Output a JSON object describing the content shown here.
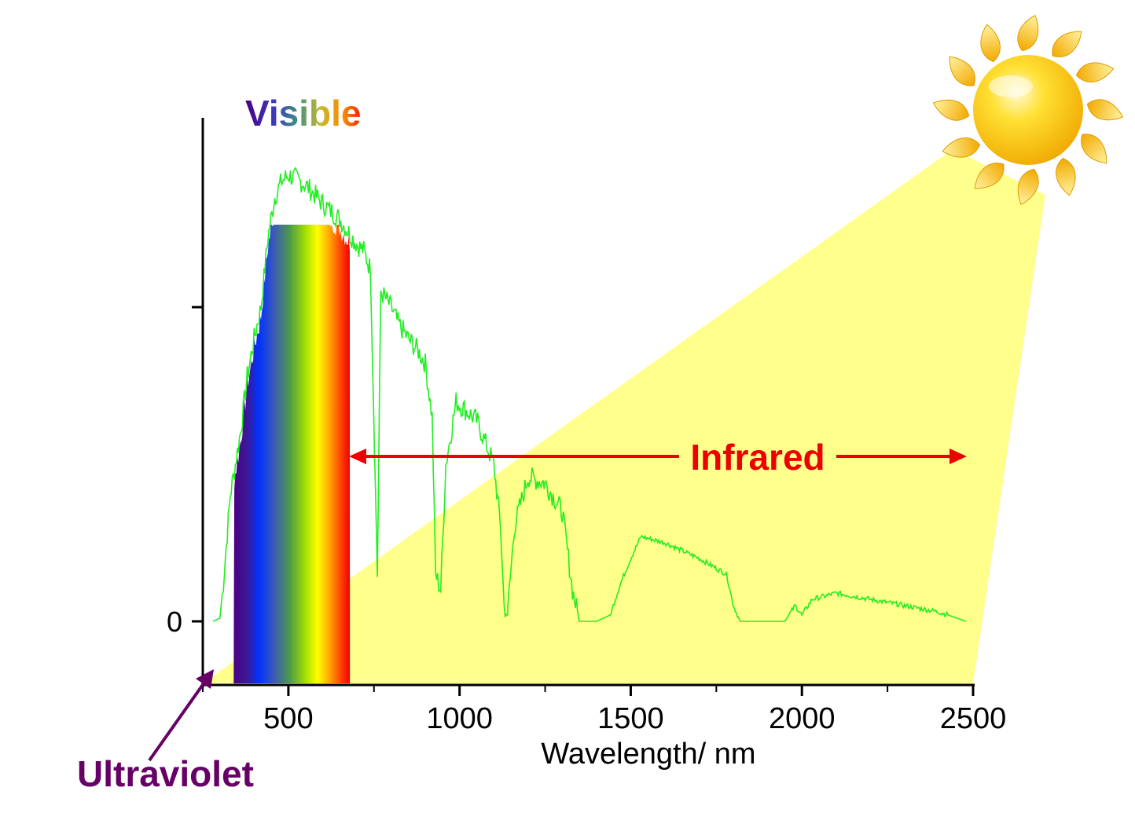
{
  "chart_data": {
    "type": "line",
    "xlabel": "Wavelength/ nm",
    "ylabel": "",
    "xlim": [
      250,
      2500
    ],
    "x_ticks": [
      {
        "value": 500,
        "label": "500"
      },
      {
        "value": 1000,
        "label": "1000"
      },
      {
        "value": 1500,
        "label": "1500"
      },
      {
        "value": 2000,
        "label": "2000"
      },
      {
        "value": 2500,
        "label": "2500"
      }
    ],
    "y_ticks": [
      {
        "value": 0,
        "label": "0"
      },
      {
        "value": 1,
        "label": ""
      }
    ],
    "ylim": [
      -0.2,
      1.6
    ],
    "grid": false,
    "series": [
      {
        "color": "#22ee22",
        "points": [
          [
            280,
            0.0
          ],
          [
            300,
            0.01
          ],
          [
            310,
            0.12
          ],
          [
            330,
            0.4
          ],
          [
            360,
            0.6
          ],
          [
            380,
            0.78
          ],
          [
            400,
            0.9
          ],
          [
            420,
            1.0
          ],
          [
            440,
            1.22
          ],
          [
            460,
            1.35
          ],
          [
            480,
            1.4
          ],
          [
            500,
            1.42
          ],
          [
            520,
            1.41
          ],
          [
            550,
            1.39
          ],
          [
            600,
            1.33
          ],
          [
            650,
            1.28
          ],
          [
            700,
            1.2
          ],
          [
            720,
            1.18
          ],
          [
            740,
            1.12
          ],
          [
            760,
            0.15
          ],
          [
            770,
            1.05
          ],
          [
            800,
            1.0
          ],
          [
            820,
            0.95
          ],
          [
            850,
            0.9
          ],
          [
            880,
            0.86
          ],
          [
            900,
            0.82
          ],
          [
            920,
            0.65
          ],
          [
            930,
            0.15
          ],
          [
            945,
            0.1
          ],
          [
            960,
            0.5
          ],
          [
            990,
            0.7
          ],
          [
            1050,
            0.64
          ],
          [
            1100,
            0.5
          ],
          [
            1120,
            0.3
          ],
          [
            1130,
            0.05
          ],
          [
            1140,
            0.02
          ],
          [
            1160,
            0.3
          ],
          [
            1200,
            0.46
          ],
          [
            1250,
            0.44
          ],
          [
            1300,
            0.35
          ],
          [
            1330,
            0.1
          ],
          [
            1350,
            0.0
          ],
          [
            1400,
            0.0
          ],
          [
            1440,
            0.02
          ],
          [
            1470,
            0.12
          ],
          [
            1500,
            0.2
          ],
          [
            1530,
            0.27
          ],
          [
            1600,
            0.25
          ],
          [
            1700,
            0.2
          ],
          [
            1780,
            0.15
          ],
          [
            1800,
            0.05
          ],
          [
            1820,
            0.0
          ],
          [
            1900,
            0.0
          ],
          [
            1950,
            0.0
          ],
          [
            1980,
            0.05
          ],
          [
            2000,
            0.02
          ],
          [
            2030,
            0.07
          ],
          [
            2100,
            0.09
          ],
          [
            2200,
            0.07
          ],
          [
            2300,
            0.05
          ],
          [
            2400,
            0.03
          ],
          [
            2480,
            0.0
          ]
        ]
      }
    ],
    "annotations": {
      "visible": "Visible",
      "infrared": "Infrared",
      "ultraviolet": "Ultraviolet"
    },
    "colors": {
      "light_beam": "#ffff8c",
      "infrared_label": "#ee0000",
      "ultraviolet_label": "#660066",
      "sun": "#ffcc00"
    }
  }
}
